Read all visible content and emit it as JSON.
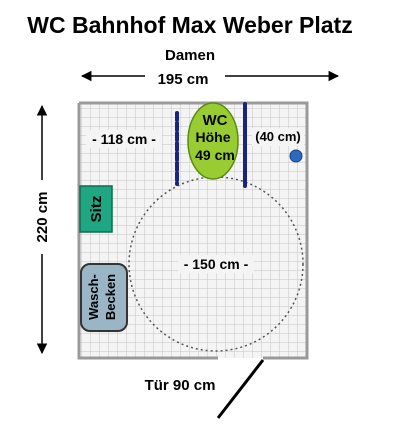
{
  "title": "WC Bahnhof Max Weber Platz",
  "subtitle": "Damen",
  "dimensions": {
    "width": "195 cm",
    "depth": "220 cm",
    "left_space": "- 118 cm -",
    "right_space": "(40 cm)",
    "turning_circle": "- 150 cm -",
    "door": "Tür 90 cm"
  },
  "toilet": {
    "line1": "WC",
    "line2": "Höhe",
    "line3": "49 cm"
  },
  "seat": {
    "label": "Sitz"
  },
  "sink": {
    "line1": "Wasch-",
    "line2": "Becken"
  },
  "colors": {
    "floor_grid": "#c8c8c8",
    "floor_background": "#f4f4f4",
    "wall": "#9a9a9a",
    "toilet_fill": "#99cc33",
    "seat_fill": "#1fa783",
    "sink_fill": "#9ab5c5",
    "grab_bar": "#1a237e",
    "flush_button": "#2b6bbf"
  }
}
